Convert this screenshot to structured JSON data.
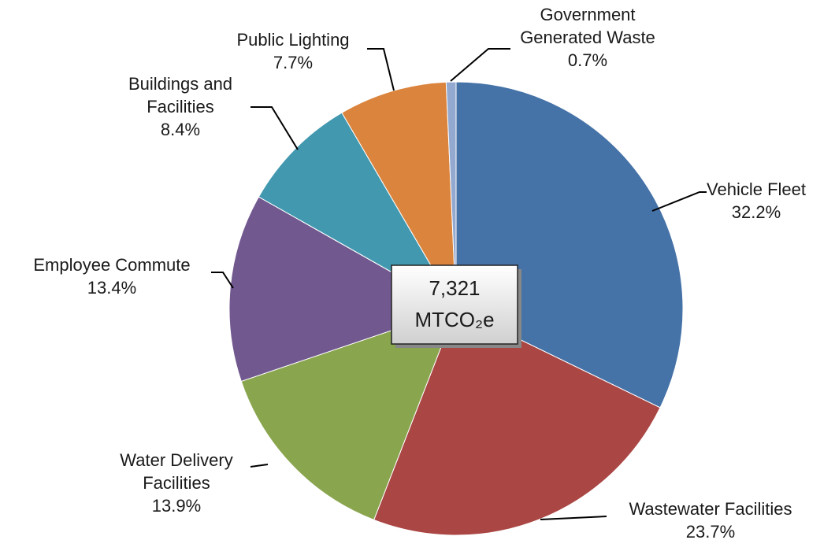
{
  "chart_data": {
    "type": "pie",
    "categories": [
      "Vehicle Fleet",
      "Wastewater Facilities",
      "Water Delivery Facilities",
      "Employee Commute",
      "Buildings and Facilities",
      "Public Lighting",
      "Government Generated Waste"
    ],
    "values": [
      32.2,
      23.7,
      13.9,
      13.4,
      8.4,
      7.7,
      0.7
    ],
    "value_labels": [
      "32.2%",
      "23.7%",
      "13.9%",
      "13.4%",
      "8.4%",
      "7.7%",
      "0.7%"
    ],
    "colors": [
      "#4572a7",
      "#aa4643",
      "#89a54e",
      "#71588f",
      "#4198af",
      "#db843d",
      "#93a9cf"
    ],
    "center_label": {
      "value": "7,321",
      "unit": "MTCO₂e"
    }
  }
}
